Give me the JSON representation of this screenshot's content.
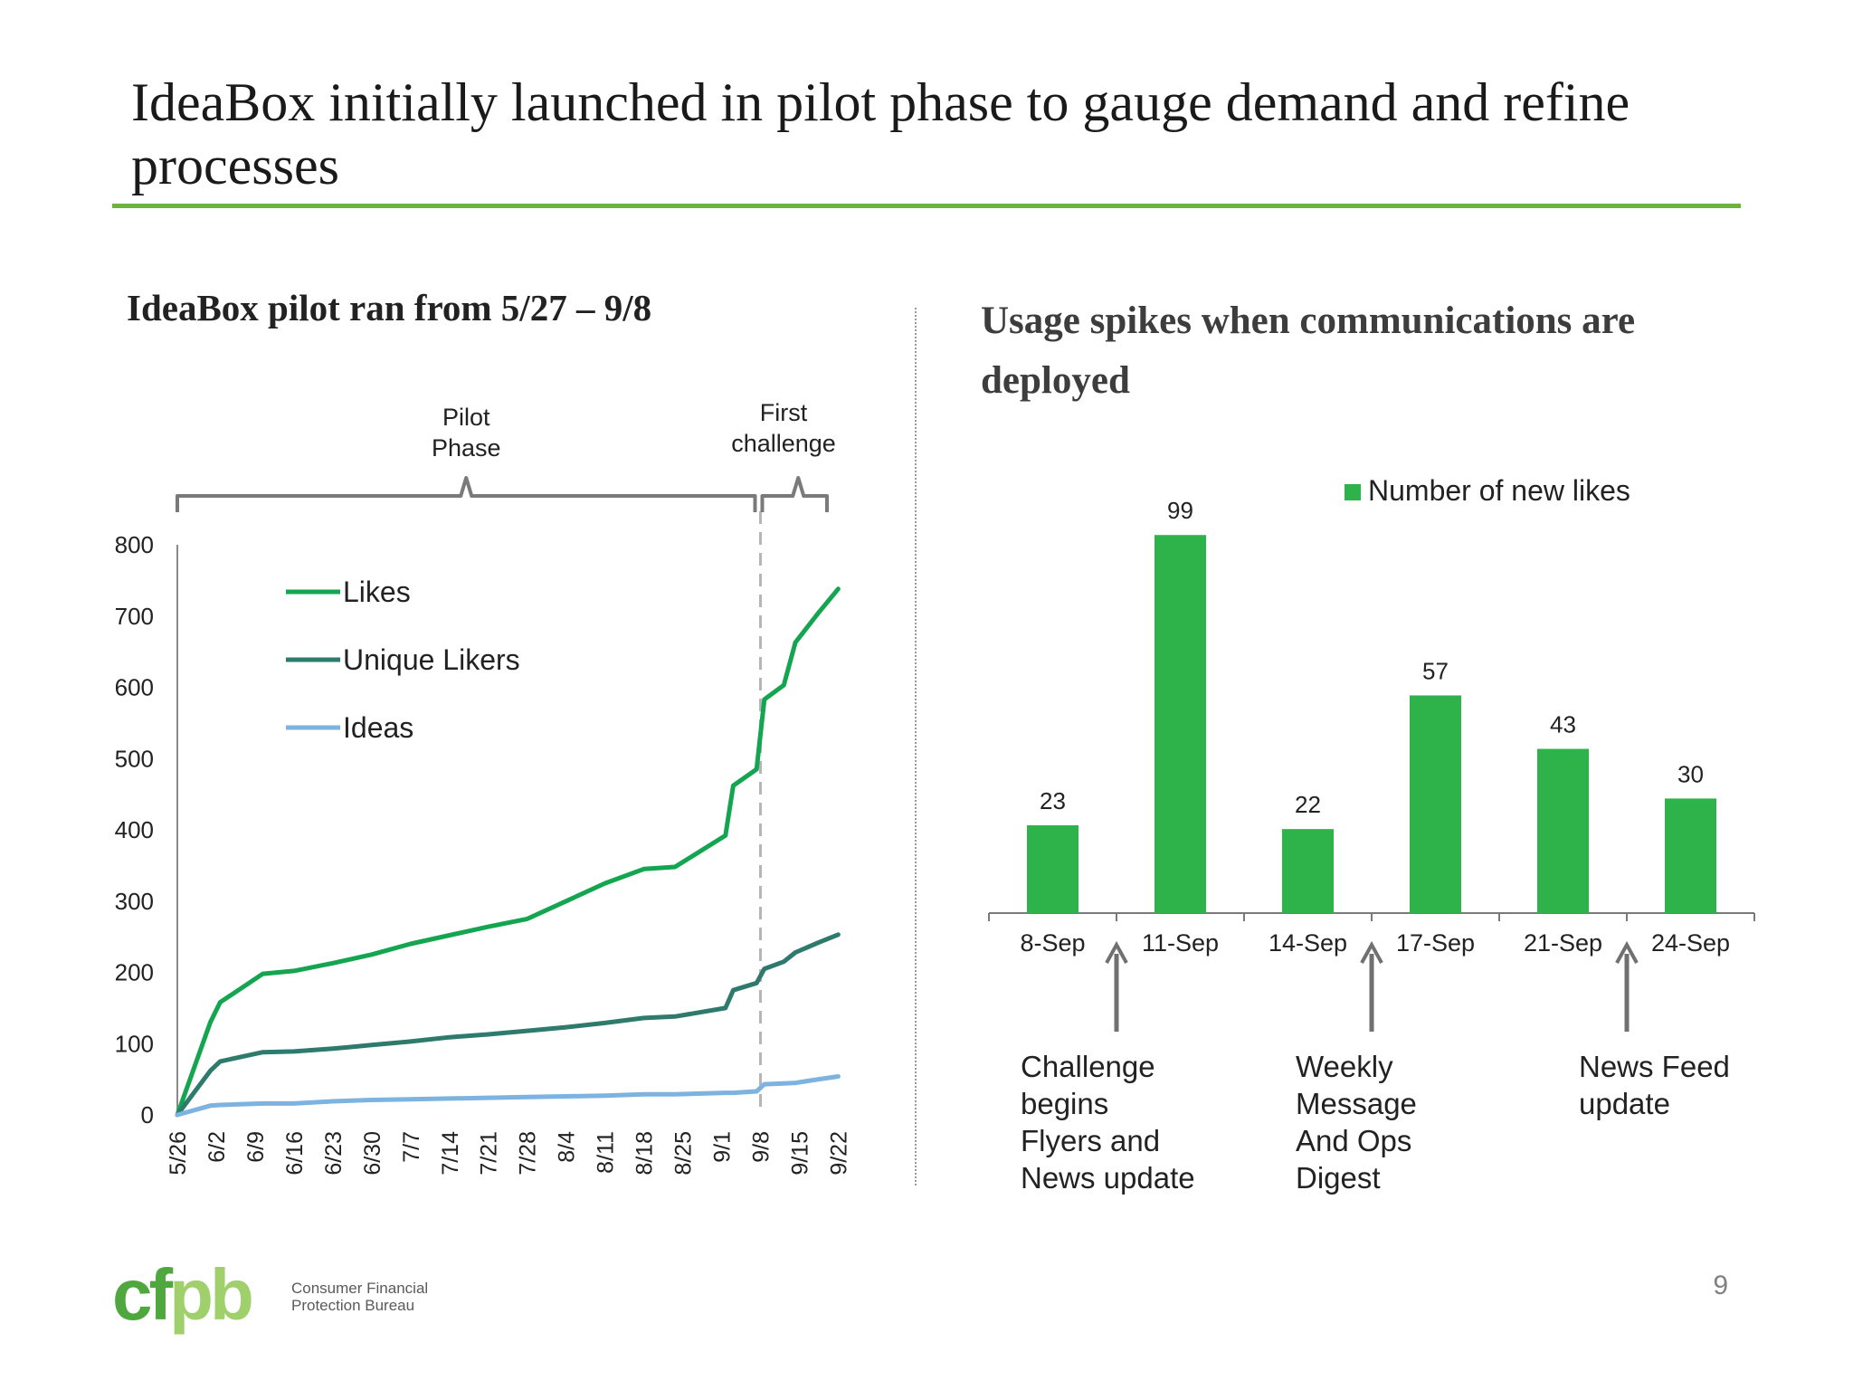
{
  "slide": {
    "title": "IdeaBox initially launched in pilot phase to gauge demand and refine processes",
    "page_number": "9"
  },
  "left_panel": {
    "heading": "IdeaBox pilot ran from 5/27 – 9/8"
  },
  "right_panel": {
    "heading": "Usage spikes when communications are deployed"
  },
  "footer": {
    "logo_text": "cfpb",
    "org_line1": "Consumer Financial",
    "org_line2": "Protection Bureau"
  },
  "colors": {
    "likes": "#13a550",
    "unique_likers": "#2e7a6c",
    "ideas": "#7cb3e0",
    "bar": "#2db34a",
    "accent_rule": "#6cb33f",
    "annotation": "#707070"
  },
  "chart_data": [
    {
      "type": "line",
      "title": "",
      "xlabel": "",
      "ylabel": "",
      "ylim": [
        0,
        800
      ],
      "yticks": [
        0,
        100,
        200,
        300,
        400,
        500,
        600,
        700,
        800
      ],
      "grid": false,
      "legend": "top-left",
      "x_tick_labels": [
        "5/26",
        "6/2",
        "6/9",
        "6/16",
        "6/23",
        "6/30",
        "7/7",
        "7/14",
        "7/21",
        "7/28",
        "8/4",
        "8/11",
        "8/18",
        "8/25",
        "9/1",
        "9/8",
        "9/15",
        "9/22"
      ],
      "x_range": [
        0,
        17.2
      ],
      "series": [
        {
          "name": "Likes",
          "x": [
            0,
            0.85,
            1.1,
            2.2,
            3.0,
            4.0,
            5.0,
            6.0,
            7.0,
            8.0,
            9.0,
            10.0,
            11.0,
            12.0,
            12.8,
            14.1,
            14.3,
            14.9,
            15.1,
            15.6,
            15.9,
            16.5,
            17.0
          ],
          "values": [
            0,
            130,
            158,
            198,
            202,
            213,
            225,
            240,
            252,
            264,
            275,
            300,
            325,
            345,
            348,
            392,
            462,
            485,
            583,
            603,
            663,
            705,
            738
          ]
        },
        {
          "name": "Unique Likers",
          "x": [
            0,
            0.85,
            1.1,
            2.2,
            3.0,
            4.0,
            5.0,
            6.0,
            7.0,
            8.0,
            9.0,
            10.0,
            11.0,
            12.0,
            12.8,
            14.1,
            14.3,
            14.9,
            15.1,
            15.6,
            15.9,
            16.5,
            17.0
          ],
          "values": [
            0,
            62,
            75,
            88,
            89,
            93,
            98,
            103,
            109,
            113,
            118,
            123,
            129,
            136,
            138,
            150,
            175,
            185,
            205,
            215,
            228,
            242,
            253
          ]
        },
        {
          "name": "Ideas",
          "x": [
            0,
            0.85,
            1.1,
            2.2,
            3.0,
            4.0,
            5.0,
            6.0,
            7.0,
            8.0,
            9.0,
            10.0,
            11.0,
            12.0,
            12.8,
            14.1,
            14.3,
            14.9,
            15.1,
            15.6,
            15.9,
            16.5,
            17.0
          ],
          "values": [
            0,
            13,
            14,
            16,
            16,
            19,
            21,
            22,
            23,
            24,
            25,
            26,
            27,
            29,
            29,
            31,
            31,
            33,
            43,
            44,
            45,
            50,
            54
          ]
        }
      ],
      "annotations": {
        "pilot_phase": [
          "Pilot",
          "Phase"
        ],
        "first_challenge": [
          "First",
          "challenge"
        ],
        "divider_at_x": 15.0
      }
    },
    {
      "type": "bar",
      "title": "",
      "xlabel": "",
      "ylabel": "",
      "ylim": [
        0,
        110
      ],
      "grid": false,
      "legend": "top-right",
      "categories": [
        "8-Sep",
        "11-Sep",
        "14-Sep",
        "17-Sep",
        "21-Sep",
        "24-Sep"
      ],
      "series": [
        {
          "name": "Number of new likes",
          "values": [
            23,
            99,
            22,
            57,
            43,
            30
          ]
        }
      ],
      "annotations": [
        {
          "between": [
            0,
            1
          ],
          "lines": [
            "Challenge",
            "begins",
            "Flyers and",
            "News update"
          ]
        },
        {
          "between": [
            2,
            3
          ],
          "lines": [
            "Weekly",
            "Message",
            "And Ops",
            "Digest"
          ]
        },
        {
          "between": [
            4,
            5
          ],
          "lines": [
            "News Feed",
            "update"
          ]
        }
      ]
    }
  ]
}
